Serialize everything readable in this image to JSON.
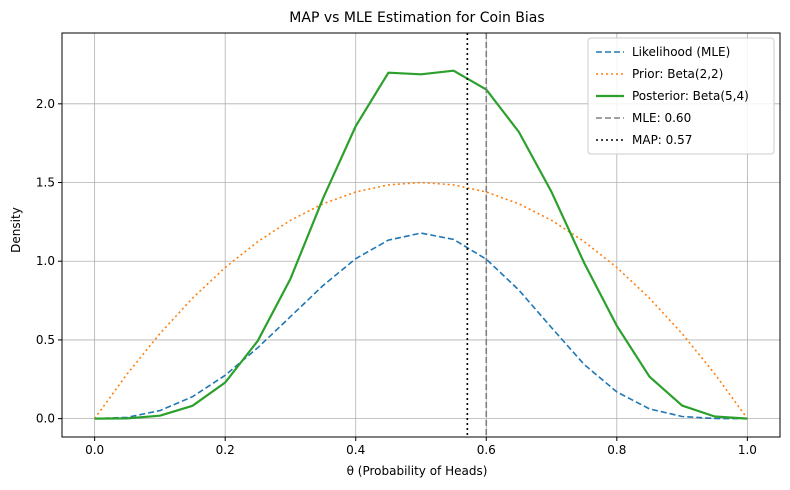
{
  "chart_data": {
    "type": "line",
    "title": "MAP vs MLE Estimation for Coin Bias",
    "xlabel": "θ (Probability of Heads)",
    "ylabel": "Density",
    "xlim": [
      -0.05,
      1.05
    ],
    "ylim": [
      -0.1167,
      2.45
    ],
    "xticks": [
      0.0,
      0.2,
      0.4,
      0.6,
      0.8,
      1.0
    ],
    "xtick_labels": [
      "0.0",
      "0.2",
      "0.4",
      "0.6",
      "0.8",
      "1.0"
    ],
    "yticks": [
      0.0,
      0.5,
      1.0,
      1.5,
      2.0
    ],
    "ytick_labels": [
      "0.0",
      "0.5",
      "1.0",
      "1.5",
      "2.0"
    ],
    "grid": true,
    "legend_position": "top-right",
    "x": [
      0.0,
      0.05,
      0.1,
      0.15,
      0.2,
      0.25,
      0.3,
      0.35,
      0.4,
      0.45,
      0.5,
      0.55,
      0.6,
      0.65,
      0.7,
      0.75,
      0.8,
      0.85,
      0.9,
      0.95,
      1.0
    ],
    "series": [
      {
        "name": "Likelihood (MLE)",
        "style": "dashed",
        "color": "#1f77b4",
        "values": [
          0.0,
          0.0083,
          0.0509,
          0.1393,
          0.2753,
          0.4506,
          0.6483,
          0.8456,
          1.0161,
          1.1341,
          1.1787,
          1.1385,
          1.0131,
          0.8163,
          0.5782,
          0.3439,
          0.1696,
          0.0621,
          0.0133,
          0.0008,
          0.0
        ]
      },
      {
        "name": "Prior: Beta(2,2)",
        "style": "dotted",
        "color": "#ff7f0e",
        "values": [
          0.0,
          0.285,
          0.54,
          0.765,
          0.96,
          1.125,
          1.26,
          1.365,
          1.44,
          1.485,
          1.5,
          1.485,
          1.44,
          1.365,
          1.26,
          1.125,
          0.96,
          0.765,
          0.54,
          0.285,
          0.0
        ]
      },
      {
        "name": "Posterior: Beta(5,4)",
        "style": "solid",
        "color": "#2ca02c",
        "values": [
          0.0,
          0.0015,
          0.0184,
          0.0813,
          0.2294,
          0.4944,
          0.8893,
          1.4006,
          1.8579,
          2.1975,
          2.1875,
          2.2105,
          2.0902,
          1.8209,
          1.4407,
          0.9888,
          0.5898,
          0.2661,
          0.0827,
          0.0135,
          0.0
        ]
      }
    ],
    "reference_lines": [
      {
        "name": "MLE: 0.60",
        "x": 0.6,
        "style": "dashed",
        "color": "#808080"
      },
      {
        "name": "MAP: 0.57",
        "x": 0.571,
        "style": "dotted",
        "color": "#000000"
      }
    ]
  }
}
